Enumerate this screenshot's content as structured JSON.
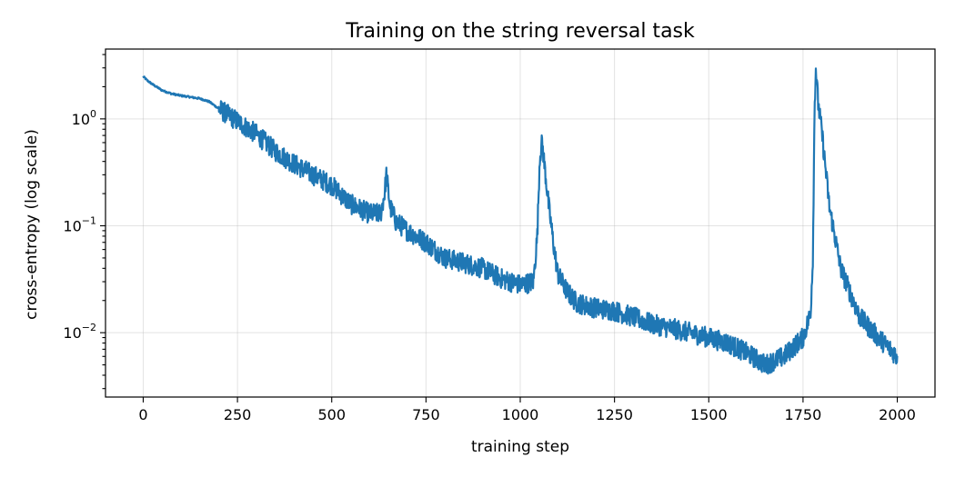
{
  "chart_data": {
    "type": "line",
    "title": "Training on the string reversal task",
    "xlabel": "training step",
    "ylabel": "cross-entropy (log scale)",
    "xlim": [
      -100,
      2100
    ],
    "ylim": [
      0.0025,
      4.5
    ],
    "yscale": "log",
    "grid": true,
    "xticks": [
      0,
      250,
      500,
      750,
      1000,
      1250,
      1500,
      1750,
      2000
    ],
    "yticks": [
      {
        "value": 1,
        "base": "10",
        "exp": "0"
      },
      {
        "value": 0.1,
        "base": "10",
        "exp": "−1"
      },
      {
        "value": 0.01,
        "base": "10",
        "exp": "−2"
      }
    ],
    "series": [
      {
        "color": "#1f77b4",
        "x": [
          0,
          10,
          25,
          50,
          75,
          100,
          125,
          150,
          175,
          200,
          250,
          300,
          350,
          400,
          450,
          500,
          550,
          600,
          630,
          640,
          645,
          655,
          670,
          700,
          750,
          800,
          850,
          900,
          950,
          1000,
          1035,
          1045,
          1052,
          1058,
          1065,
          1075,
          1090,
          1100,
          1125,
          1150,
          1200,
          1250,
          1300,
          1350,
          1400,
          1450,
          1500,
          1550,
          1600,
          1650,
          1700,
          1750,
          1770,
          1776,
          1781,
          1784,
          1790,
          1800,
          1820,
          1850,
          1900,
          1950,
          2000
        ],
        "y": [
          2.5,
          2.3,
          2.1,
          1.85,
          1.72,
          1.65,
          1.6,
          1.55,
          1.45,
          1.25,
          0.95,
          0.72,
          0.5,
          0.38,
          0.3,
          0.24,
          0.16,
          0.13,
          0.13,
          0.2,
          0.3,
          0.15,
          0.11,
          0.09,
          0.07,
          0.05,
          0.045,
          0.04,
          0.032,
          0.028,
          0.03,
          0.08,
          0.45,
          0.6,
          0.35,
          0.16,
          0.06,
          0.035,
          0.024,
          0.019,
          0.017,
          0.016,
          0.014,
          0.012,
          0.011,
          0.01,
          0.009,
          0.008,
          0.0065,
          0.005,
          0.006,
          0.009,
          0.015,
          0.05,
          1.5,
          3.0,
          1.4,
          0.75,
          0.15,
          0.04,
          0.014,
          0.009,
          0.006
        ]
      }
    ]
  }
}
